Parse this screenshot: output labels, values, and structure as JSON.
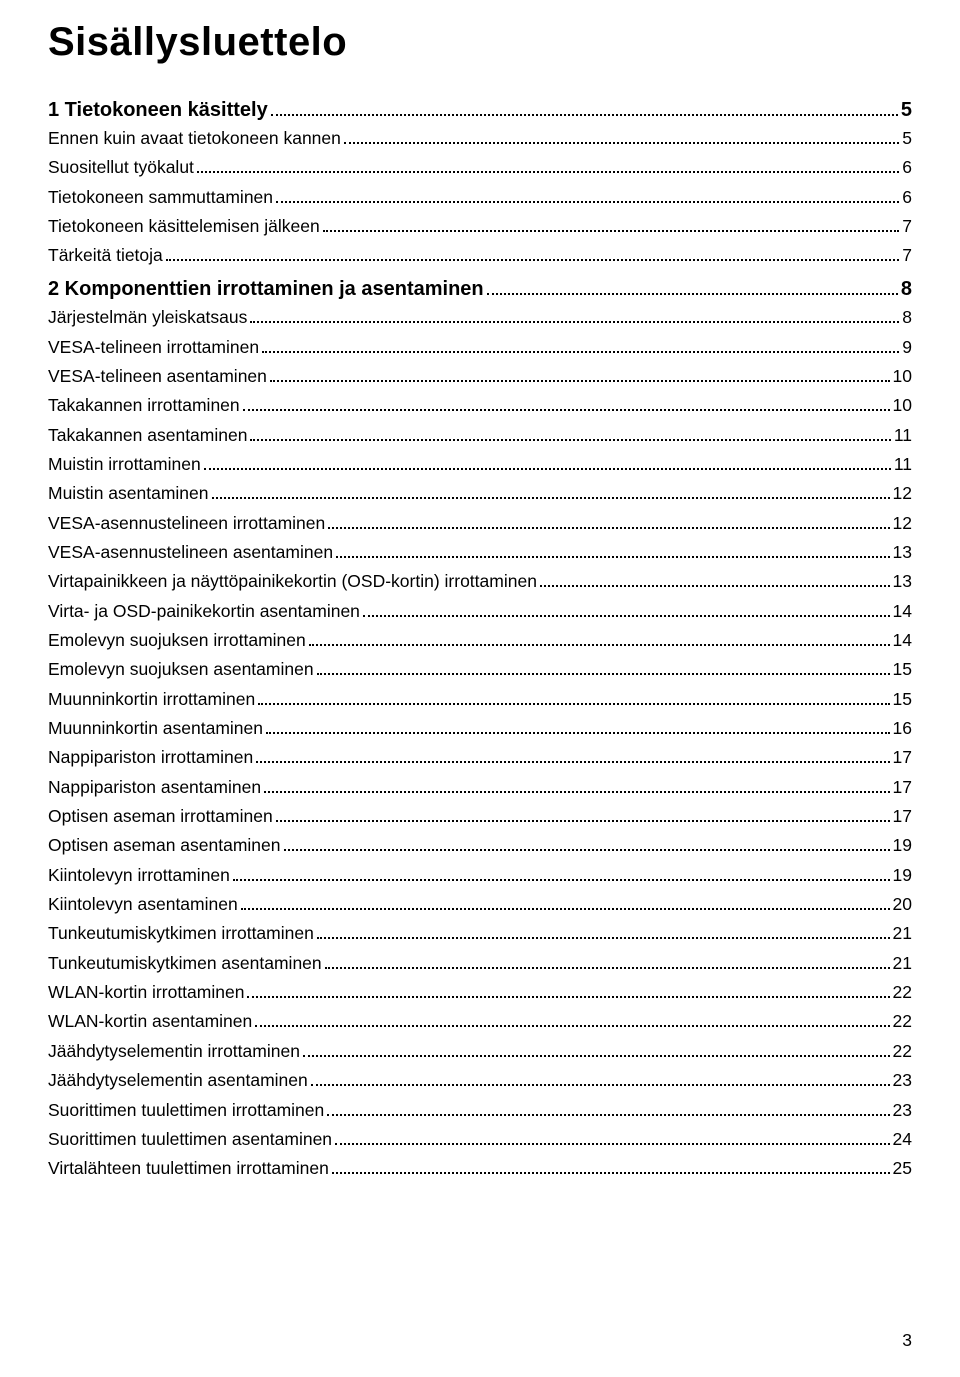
{
  "title": "Sisällysluettelo",
  "footer_page": "3",
  "colors": {
    "text": "#000000",
    "background": "#ffffff"
  },
  "typography": {
    "title_fontsize": 40,
    "chapter_fontsize": 20,
    "entry_fontsize": 17.5,
    "font_family": "Arial"
  },
  "chapters": [
    {
      "heading": "1 Tietokoneen käsittely",
      "page": "5",
      "entries": [
        {
          "label": "Ennen kuin avaat tietokoneen kannen",
          "page": "5"
        },
        {
          "label": "Suositellut työkalut",
          "page": "6"
        },
        {
          "label": "Tietokoneen sammuttaminen",
          "page": "6"
        },
        {
          "label": "Tietokoneen käsittelemisen jälkeen",
          "page": "7"
        },
        {
          "label": "Tärkeitä tietoja",
          "page": "7"
        }
      ]
    },
    {
      "heading": "2 Komponenttien irrottaminen ja asentaminen",
      "page": "8",
      "entries": [
        {
          "label": "Järjestelmän yleiskatsaus",
          "page": "8"
        },
        {
          "label": "VESA-telineen irrottaminen",
          "page": "9"
        },
        {
          "label": "VESA-telineen asentaminen",
          "page": "10"
        },
        {
          "label": "Takakannen irrottaminen",
          "page": "10"
        },
        {
          "label": "Takakannen asentaminen",
          "page": "11"
        },
        {
          "label": "Muistin irrottaminen",
          "page": "11"
        },
        {
          "label": "Muistin asentaminen",
          "page": "12"
        },
        {
          "label": "VESA-asennustelineen irrottaminen",
          "page": "12"
        },
        {
          "label": "VESA-asennustelineen asentaminen",
          "page": "13"
        },
        {
          "label": "Virtapainikkeen ja näyttöpainikekortin (OSD-kortin) irrottaminen",
          "page": "13"
        },
        {
          "label": "Virta- ja OSD-painikekortin asentaminen",
          "page": "14"
        },
        {
          "label": "Emolevyn suojuksen irrottaminen",
          "page": "14"
        },
        {
          "label": "Emolevyn suojuksen asentaminen",
          "page": "15"
        },
        {
          "label": "Muunninkortin irrottaminen",
          "page": "15"
        },
        {
          "label": "Muunninkortin asentaminen",
          "page": "16"
        },
        {
          "label": "Nappipariston irrottaminen",
          "page": "17"
        },
        {
          "label": "Nappipariston asentaminen",
          "page": "17"
        },
        {
          "label": "Optisen aseman irrottaminen",
          "page": "17"
        },
        {
          "label": "Optisen aseman asentaminen",
          "page": "19"
        },
        {
          "label": "Kiintolevyn irrottaminen",
          "page": "19"
        },
        {
          "label": "Kiintolevyn asentaminen",
          "page": "20"
        },
        {
          "label": "Tunkeutumiskytkimen irrottaminen",
          "page": "21"
        },
        {
          "label": "Tunkeutumiskytkimen asentaminen",
          "page": "21"
        },
        {
          "label": "WLAN-kortin irrottaminen",
          "page": "22"
        },
        {
          "label": "WLAN-kortin asentaminen",
          "page": "22"
        },
        {
          "label": "Jäähdytyselementin irrottaminen",
          "page": "22"
        },
        {
          "label": "Jäähdytyselementin asentaminen",
          "page": "23"
        },
        {
          "label": "Suorittimen tuulettimen irrottaminen",
          "page": "23"
        },
        {
          "label": "Suorittimen tuulettimen asentaminen",
          "page": "24"
        },
        {
          "label": "Virtalähteen tuulettimen irrottaminen",
          "page": "25"
        }
      ]
    }
  ]
}
